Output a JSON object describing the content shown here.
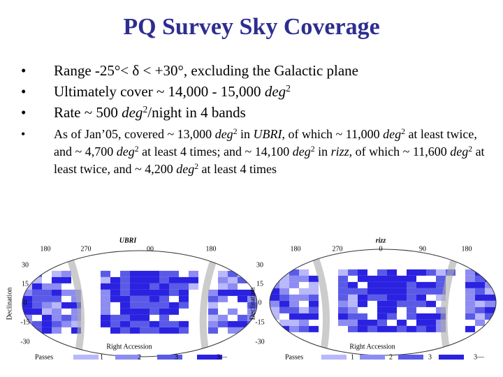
{
  "header": {
    "title": "PQ Survey Sky Coverage"
  },
  "bullets": [
    {
      "size": "big",
      "segments": [
        {
          "text": "Range -25°< δ < +30°, excluding the Galactic plane"
        }
      ]
    },
    {
      "size": "big",
      "segments": [
        {
          "text": "Ultimately cover ~ 14,000 - 15,000 "
        },
        {
          "text": "deg",
          "style": "italic"
        },
        {
          "text": "2",
          "style": "sup"
        }
      ]
    },
    {
      "size": "big",
      "segments": [
        {
          "text": "Rate ~ 500 "
        },
        {
          "text": "deg",
          "style": "italic"
        },
        {
          "text": "2",
          "style": "sup"
        },
        {
          "text": "/night in 4 bands"
        }
      ]
    },
    {
      "size": "small",
      "segments": [
        {
          "text": "As of Jan’05, covered ~ 13,000 "
        },
        {
          "text": "deg",
          "style": "italic"
        },
        {
          "text": "2",
          "style": "sup"
        },
        {
          "text": " in "
        },
        {
          "text": "UBRI",
          "style": "italic"
        },
        {
          "text": ", of which  ~ 11,000 "
        },
        {
          "text": "deg",
          "style": "italic"
        },
        {
          "text": "2",
          "style": "sup"
        },
        {
          "text": " at least twice, and ~ 4,700 "
        },
        {
          "text": "deg",
          "style": "italic"
        },
        {
          "text": "2",
          "style": "sup"
        },
        {
          "text": " at least 4 times; and ~ 14,100 "
        },
        {
          "text": "deg",
          "style": "italic"
        },
        {
          "text": "2",
          "style": "sup"
        },
        {
          "text": " in "
        },
        {
          "text": "rizz",
          "style": "italic"
        },
        {
          "text": ", of which ~ 11,600 "
        },
        {
          "text": "deg",
          "style": "italic"
        },
        {
          "text": "2",
          "style": "sup"
        },
        {
          "text": " at least twice, and ~ 4,200 "
        },
        {
          "text": "deg",
          "style": "italic"
        },
        {
          "text": "2",
          "style": "sup"
        },
        {
          "text": " at least 4 times"
        }
      ]
    }
  ],
  "maps": [
    {
      "label": "UBRI",
      "ra_ticks": [
        "180",
        "270",
        "00",
        "180"
      ],
      "dec_ticks": [
        "30",
        "15",
        "0",
        "-15",
        "-30"
      ],
      "y_axis_label": "Declination",
      "x_axis_label": "Right Accession",
      "legend": {
        "title": "Passes",
        "items": [
          "1",
          "2",
          "3",
          "3—"
        ]
      }
    },
    {
      "label": "rizz",
      "ra_ticks": [
        "180",
        "270",
        "0",
        "90",
        "180"
      ],
      "dec_ticks": [
        "30",
        "15",
        "0",
        "-15",
        "-30"
      ],
      "y_axis_label": "Declination",
      "x_axis_label": "Right Accession",
      "legend": {
        "title": "Passes",
        "items": [
          "1",
          "2",
          "3",
          "3—"
        ]
      }
    }
  ]
}
